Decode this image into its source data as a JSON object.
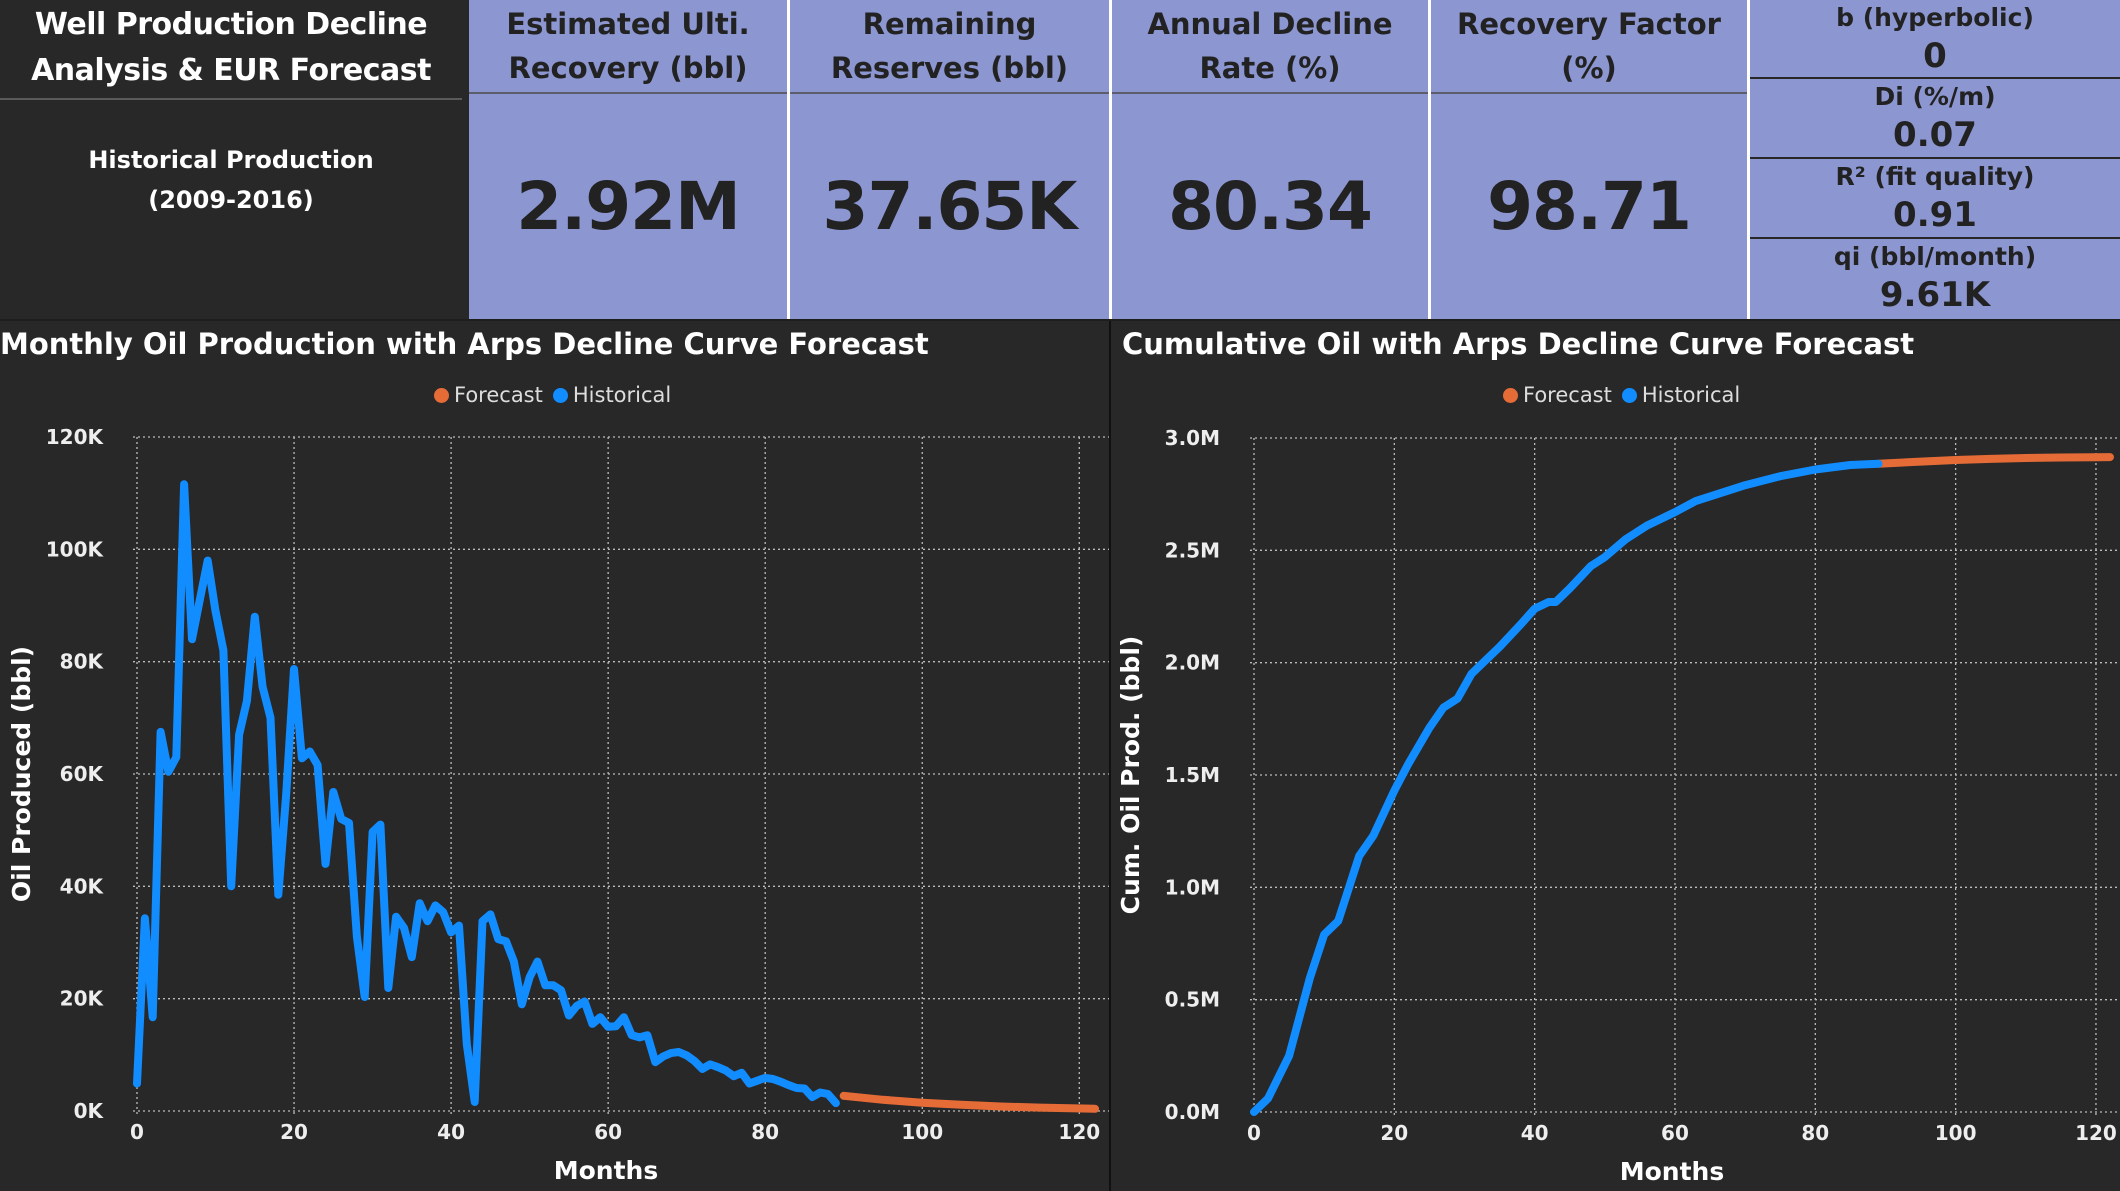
{
  "header": {
    "title": "Well Production Decline Analysis & EUR Forecast",
    "subtitle_line1": "Historical Production",
    "subtitle_line2": "(2009-2016)"
  },
  "kpis": [
    {
      "label": "Estimated Ulti. Recovery (bbl)",
      "value": "2.92M"
    },
    {
      "label": "Remaining Reserves (bbl)",
      "value": "37.65K"
    },
    {
      "label": "Annual Decline Rate (%)",
      "value": "80.34"
    },
    {
      "label": "Recovery Factor (%)",
      "value": "98.71"
    }
  ],
  "params": [
    {
      "label": "b (hyperbolic)",
      "value": "0"
    },
    {
      "label": "Di (%/m)",
      "value": "0.07"
    },
    {
      "label": "R² (fit quality)",
      "value": "0.91"
    },
    {
      "label": "qi (bbl/month)",
      "value": "9.61K"
    }
  ],
  "colors": {
    "forecast": "#E66C37",
    "historical": "#118DFF",
    "card": "#8C96D0",
    "background": "#282828"
  },
  "chart_data": [
    {
      "type": "line",
      "title": "Monthly Oil Production with Arps Decline Curve Forecast",
      "xlabel": "Months",
      "ylabel": "Oil Produced (bbl)",
      "xlim": [
        0,
        122
      ],
      "ylim": [
        0,
        120000
      ],
      "xticks": [
        0,
        20,
        40,
        60,
        80,
        100,
        120
      ],
      "yticks": [
        {
          "v": 0,
          "label": "0K"
        },
        {
          "v": 20000,
          "label": "20K"
        },
        {
          "v": 40000,
          "label": "40K"
        },
        {
          "v": 60000,
          "label": "60K"
        },
        {
          "v": 80000,
          "label": "80K"
        },
        {
          "v": 100000,
          "label": "100K"
        },
        {
          "v": 120000,
          "label": "120K"
        }
      ],
      "grid": true,
      "legend": {
        "position": "top-center",
        "entries": [
          "Forecast",
          "Historical"
        ]
      },
      "series": [
        {
          "name": "Historical",
          "x_start": 0,
          "values": [
            4900,
            34300,
            16700,
            67500,
            60400,
            63000,
            111600,
            84000,
            91000,
            98000,
            89000,
            82000,
            40000,
            67000,
            73000,
            88000,
            75500,
            70000,
            38500,
            56400,
            78700,
            62800,
            64000,
            61600,
            44000,
            56800,
            52000,
            51300,
            31000,
            20300,
            49700,
            51000,
            21900,
            34600,
            32600,
            27400,
            37000,
            33800,
            36600,
            35400,
            31800,
            33000,
            11900,
            1600,
            33800,
            35000,
            30600,
            30200,
            26600,
            19000,
            23800,
            26600,
            22400,
            22400,
            21500,
            17000,
            18700,
            19500,
            15500,
            16700,
            15000,
            15100,
            16700,
            13500,
            13100,
            13500,
            8700,
            9700,
            10300,
            10500,
            9900,
            8900,
            7500,
            8300,
            7800,
            7200,
            6200,
            6800,
            4900,
            5400,
            5900,
            5700,
            5200,
            4600,
            4100,
            4000,
            2500,
            3300,
            3000,
            1400
          ]
        },
        {
          "name": "Forecast",
          "x": [
            90,
            95,
            100,
            105,
            110,
            115,
            122
          ],
          "values": [
            2700,
            2000,
            1480,
            1100,
            810,
            600,
            400
          ]
        }
      ]
    },
    {
      "type": "line",
      "title": "Cumulative Oil with Arps Decline Curve Forecast",
      "xlabel": "Months",
      "ylabel": "Cum. Oil Prod. (bbl)",
      "xlim": [
        0,
        122
      ],
      "ylim": [
        0,
        3000000
      ],
      "xticks": [
        0,
        20,
        40,
        60,
        80,
        100,
        120
      ],
      "yticks": [
        {
          "v": 0,
          "label": "0.0M"
        },
        {
          "v": 500000,
          "label": "0.5M"
        },
        {
          "v": 1000000,
          "label": "1.0M"
        },
        {
          "v": 1500000,
          "label": "1.5M"
        },
        {
          "v": 2000000,
          "label": "2.0M"
        },
        {
          "v": 2500000,
          "label": "2.5M"
        },
        {
          "v": 3000000,
          "label": "3.0M"
        }
      ],
      "grid": true,
      "legend": {
        "position": "top-center",
        "entries": [
          "Forecast",
          "Historical"
        ]
      },
      "series": [
        {
          "name": "Historical",
          "x": [
            0,
            2,
            5,
            8,
            10,
            12,
            15,
            17,
            20,
            22,
            25,
            27,
            29,
            31,
            33,
            35,
            38,
            40,
            42,
            43,
            45,
            48,
            50,
            53,
            56,
            60,
            63,
            66,
            70,
            75,
            80,
            85,
            89
          ],
          "values": [
            0,
            60000,
            250000,
            600000,
            790000,
            850000,
            1140000,
            1230000,
            1430000,
            1550000,
            1710000,
            1800000,
            1840000,
            1950000,
            2010000,
            2070000,
            2170000,
            2240000,
            2270000,
            2270000,
            2330000,
            2430000,
            2470000,
            2550000,
            2610000,
            2670000,
            2720000,
            2750000,
            2790000,
            2830000,
            2860000,
            2880000,
            2885000
          ]
        },
        {
          "name": "Forecast",
          "x": [
            89,
            95,
            100,
            105,
            110,
            115,
            122
          ],
          "values": [
            2885000,
            2895000,
            2902000,
            2907000,
            2911000,
            2913000,
            2915000
          ]
        }
      ]
    }
  ]
}
